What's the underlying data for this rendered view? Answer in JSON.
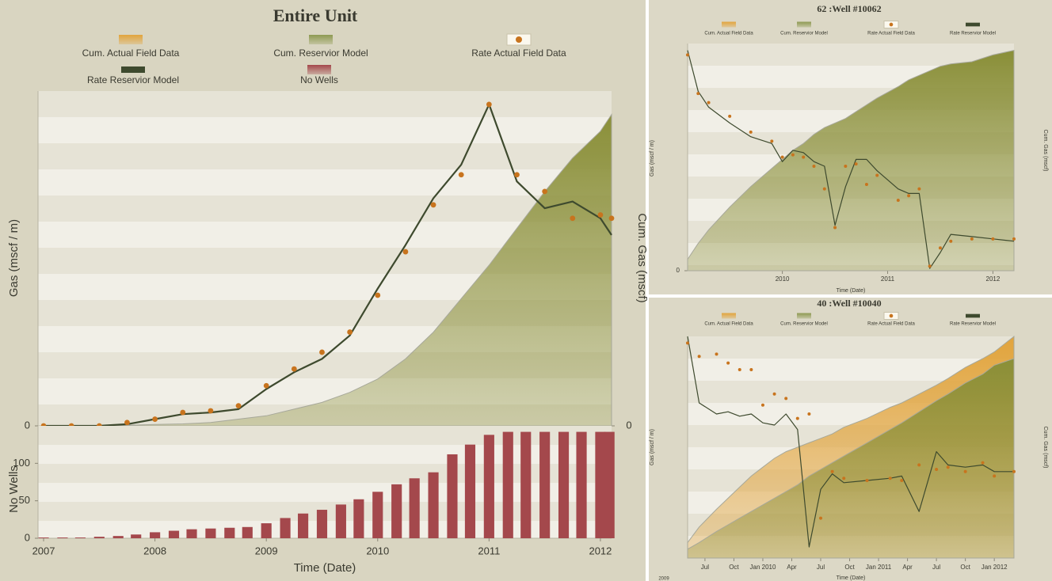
{
  "chart_data": [
    {
      "type": "combo",
      "title": "Entire Unit",
      "ylabel": "Gas (mscf / m)",
      "y2label": "Cum. Gas (mscf)",
      "legend": [
        {
          "name": "Cum. Actual Field Data",
          "color": "#e2a43c",
          "kind": "area"
        },
        {
          "name": "Cum. Reservior Model",
          "color": "#8e9a52",
          "kind": "area"
        },
        {
          "name": "Rate Actual Field Data",
          "color": "#c8741e",
          "kind": "dot"
        },
        {
          "name": "Rate Reservior Model",
          "color": "#3e4a2e",
          "kind": "line"
        },
        {
          "name": "No Wells",
          "color": "#a4484c",
          "kind": "bar"
        }
      ],
      "xlim": [
        2006.95,
        2012.1
      ],
      "ylim": [
        0,
        100
      ],
      "yticks": [
        0
      ],
      "y2lim": [
        0,
        100
      ],
      "y2ticks": [
        0
      ],
      "x": [
        2007,
        2007.25,
        2007.5,
        2007.75,
        2008,
        2008.25,
        2008.5,
        2008.75,
        2009,
        2009.25,
        2009.5,
        2009.75,
        2010,
        2010.25,
        2010.5,
        2010.75,
        2011,
        2011.25,
        2011.5,
        2011.75,
        2012,
        2012.1
      ],
      "series": [
        {
          "name": "Cum. Reservior Model",
          "type": "area",
          "axis": "y2",
          "color": "#8a8f38",
          "values": [
            0,
            0,
            0.1,
            0.2,
            0.4,
            0.6,
            1,
            2,
            3,
            5,
            7,
            10,
            14,
            20,
            28,
            38,
            48,
            59,
            70,
            80,
            88,
            93
          ]
        },
        {
          "name": "Rate Reservior Model",
          "type": "line",
          "color": "#3e4a2e",
          "values": [
            0,
            0,
            0,
            0.5,
            2,
            3.5,
            4,
            5,
            11,
            16,
            20,
            27,
            41,
            54,
            68,
            78,
            96,
            73,
            65,
            67,
            62,
            57
          ]
        },
        {
          "name": "Rate Actual Field Data",
          "type": "scatter",
          "color": "#c8741e",
          "values": [
            0,
            0,
            0,
            1,
            2,
            4,
            4.5,
            6,
            12,
            17,
            22,
            28,
            39,
            52,
            66,
            75,
            96,
            75,
            70,
            62,
            63,
            62
          ]
        }
      ]
    },
    {
      "type": "bar",
      "ylabel": "No Wells",
      "xlabel": "Time (Date)",
      "xlim": [
        2006.95,
        2012.1
      ],
      "xticks": [
        2007,
        2008,
        2009,
        2010,
        2011,
        2012
      ],
      "ylim": [
        0,
        150
      ],
      "yticks": [
        0,
        50,
        100
      ],
      "x": [
        2007,
        2007.17,
        2007.33,
        2007.5,
        2007.67,
        2007.83,
        2008,
        2008.17,
        2008.33,
        2008.5,
        2008.67,
        2008.83,
        2009,
        2009.17,
        2009.33,
        2009.5,
        2009.67,
        2009.83,
        2010,
        2010.17,
        2010.33,
        2010.5,
        2010.67,
        2010.83,
        2011,
        2011.17,
        2011.33,
        2011.5,
        2011.67,
        2011.83,
        2012,
        2012.08
      ],
      "series": [
        {
          "name": "No Wells",
          "type": "bar",
          "color": "#a4484c",
          "values": [
            1,
            1,
            1,
            2,
            3,
            5,
            8,
            10,
            12,
            13,
            14,
            15,
            20,
            27,
            33,
            38,
            45,
            52,
            62,
            72,
            80,
            88,
            112,
            125,
            138,
            142,
            142,
            142,
            142,
            142,
            142,
            142
          ]
        }
      ]
    },
    {
      "type": "combo",
      "title": "62 :Well #10062",
      "ylabel": "Gas (mscf / m)",
      "y2label": "Cum. Gas (mscf)",
      "xlabel": "Time (Date)",
      "legend": [
        {
          "name": "Cum. Actual Field Data",
          "color": "#e2a43c",
          "kind": "area"
        },
        {
          "name": "Cum. Reservior Model",
          "color": "#8e9a52",
          "kind": "area"
        },
        {
          "name": "Rate Actual Field Data",
          "color": "#c8741e",
          "kind": "dot"
        },
        {
          "name": "Rate Reservior Model",
          "color": "#3e4a2e",
          "kind": "line"
        }
      ],
      "xlim": [
        2009.1,
        2012.2
      ],
      "xticks": [
        2010,
        2011,
        2012
      ],
      "ylim": [
        0,
        100
      ],
      "yticks": [
        0
      ],
      "y2lim": [
        0,
        100
      ],
      "x": [
        2009.1,
        2009.2,
        2009.3,
        2009.5,
        2009.7,
        2009.9,
        2010,
        2010.1,
        2010.2,
        2010.3,
        2010.4,
        2010.5,
        2010.6,
        2010.7,
        2010.8,
        2010.9,
        2011.1,
        2011.2,
        2011.3,
        2011.4,
        2011.5,
        2011.6,
        2011.8,
        2012,
        2012.2
      ],
      "series": [
        {
          "name": "Cum. Reservior Model",
          "type": "area",
          "axis": "y2",
          "color": "#8a8f38",
          "values": [
            5,
            12,
            18,
            28,
            37,
            45,
            49,
            53,
            56,
            60,
            63,
            65,
            67,
            70,
            73,
            76,
            81,
            84,
            86,
            88,
            90,
            91,
            92,
            95,
            97
          ]
        },
        {
          "name": "Rate Reservior Model",
          "type": "line",
          "color": "#3e4a2e",
          "values": [
            97,
            79,
            72,
            65,
            59,
            56,
            48,
            53,
            52,
            48,
            46,
            20,
            37,
            49,
            49,
            44,
            36,
            34,
            34,
            1,
            8,
            16,
            15,
            14,
            13
          ]
        },
        {
          "name": "Rate Actual Field Data",
          "type": "scatter",
          "color": "#c8741e",
          "values": [
            95,
            78,
            74,
            68,
            61,
            57,
            50,
            51,
            50,
            46,
            36,
            19,
            46,
            47,
            38,
            42,
            31,
            33,
            36,
            2,
            10,
            13,
            14,
            14,
            14
          ]
        }
      ]
    },
    {
      "type": "combo",
      "title": "40 :Well #10040",
      "ylabel": "Gas (mscf / m)",
      "y2label": "Cum. Gas (mscf)",
      "xlabel": "Time (Date)",
      "annotation": "2009",
      "legend": [
        {
          "name": "Cum. Actual Field Data",
          "color": "#e2a43c",
          "kind": "area"
        },
        {
          "name": "Cum. Reservior Model",
          "color": "#8e9a52",
          "kind": "area"
        },
        {
          "name": "Rate Actual Field Data",
          "color": "#c8741e",
          "kind": "dot"
        },
        {
          "name": "Rate Reservior Model",
          "color": "#3e4a2e",
          "kind": "line"
        }
      ],
      "xlim": [
        2009.35,
        2012.17
      ],
      "xticks": [
        {
          "value": 2009.5,
          "label": "Jul"
        },
        {
          "value": 2009.75,
          "label": "Oct"
        },
        {
          "value": 2010,
          "label": "Jan 2010"
        },
        {
          "value": 2010.25,
          "label": "Apr"
        },
        {
          "value": 2010.5,
          "label": "Jul"
        },
        {
          "value": 2010.75,
          "label": "Oct"
        },
        {
          "value": 2011,
          "label": "Jan 2011"
        },
        {
          "value": 2011.25,
          "label": "Apr"
        },
        {
          "value": 2011.5,
          "label": "Jul"
        },
        {
          "value": 2011.75,
          "label": "Oct"
        },
        {
          "value": 2012,
          "label": "Jan 2012"
        }
      ],
      "ylim": [
        0,
        100
      ],
      "y2lim": [
        0,
        100
      ],
      "x": [
        2009.35,
        2009.45,
        2009.6,
        2009.7,
        2009.8,
        2009.9,
        2010,
        2010.1,
        2010.2,
        2010.3,
        2010.4,
        2010.5,
        2010.6,
        2010.7,
        2010.9,
        2011.1,
        2011.2,
        2011.35,
        2011.5,
        2011.6,
        2011.75,
        2011.9,
        2012,
        2012.17
      ],
      "series": [
        {
          "name": "Cum. Actual Field Data",
          "type": "area",
          "axis": "y2",
          "color": "#e2a43c",
          "values": [
            7,
            14,
            22,
            27,
            32,
            37,
            41,
            45,
            48,
            50,
            52,
            54,
            56,
            59,
            63,
            68,
            70,
            74,
            78,
            81,
            86,
            90,
            93,
            100
          ]
        },
        {
          "name": "Cum. Reservior Model",
          "type": "area",
          "axis": "y2",
          "color": "#8a8f38",
          "values": [
            4,
            7,
            12,
            15,
            18,
            21,
            24,
            27,
            30,
            33,
            37,
            40,
            43,
            46,
            52,
            58,
            61,
            66,
            71,
            74,
            79,
            83,
            87,
            90
          ]
        },
        {
          "name": "Rate Reservior Model",
          "type": "line",
          "color": "#3e4a2e",
          "values": [
            100,
            70,
            65,
            66,
            64,
            65,
            61,
            60,
            65,
            58,
            5,
            31,
            38,
            34,
            35,
            36,
            37,
            21,
            48,
            42,
            41,
            42,
            39,
            39
          ]
        },
        {
          "name": "Rate Actual Field Data",
          "type": "scatter",
          "color": "#c8741e",
          "values": [
            97,
            91,
            92,
            88,
            85,
            85,
            69,
            74,
            72,
            63,
            65,
            18,
            39,
            36,
            35,
            36,
            35,
            42,
            40,
            41,
            39,
            43,
            37,
            39
          ]
        }
      ]
    }
  ]
}
